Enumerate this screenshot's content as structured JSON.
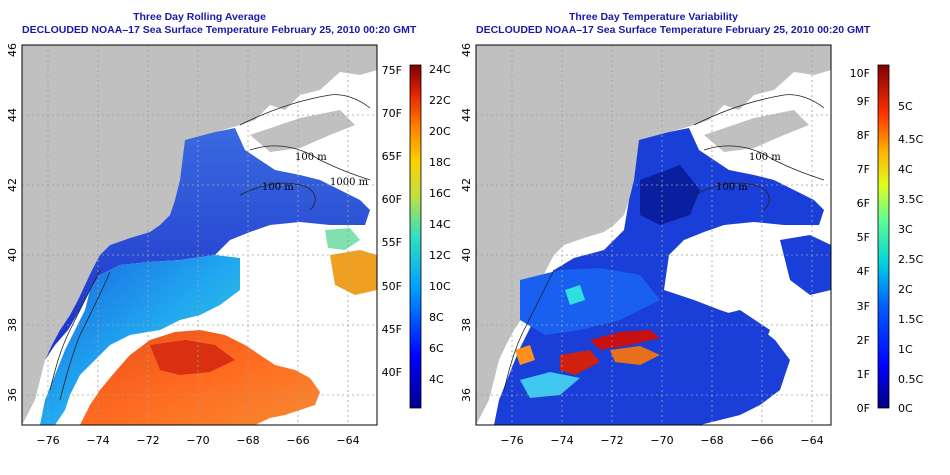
{
  "left_panel": {
    "title": "Three Day Rolling Average",
    "subtitle": "DECLOUDED NOAA–17 Sea Surface Temperature February 25, 2010 00:20 GMT",
    "colorbar_f": [
      "40F",
      "45F",
      "50F",
      "55F",
      "60F",
      "65F",
      "70F",
      "75F"
    ],
    "colorbar_c": [
      "4C",
      "6C",
      "8C",
      "10C",
      "12C",
      "14C",
      "16C",
      "18C",
      "20C",
      "22C",
      "24C"
    ]
  },
  "right_panel": {
    "title": "Three Day Temperature Variability",
    "subtitle": "DECLOUDED NOAA–17 Sea Surface Temperature February 25, 2010 00:20 GMT",
    "colorbar_f": [
      "0F",
      "1F",
      "2F",
      "3F",
      "4F",
      "5F",
      "6F",
      "7F",
      "8F",
      "9F",
      "10F"
    ],
    "colorbar_c": [
      "0C",
      "0.5C",
      "1C",
      "1.5C",
      "2C",
      "2.5C",
      "3C",
      "3.5C",
      "4C",
      "4.5C",
      "5C"
    ]
  },
  "axes": {
    "lon_ticks": [
      "−76",
      "−74",
      "−72",
      "−70",
      "−68",
      "−66",
      "−64"
    ],
    "lat_ticks": [
      "36",
      "38",
      "40",
      "42",
      "44",
      "46"
    ]
  },
  "isobath_labels": [
    "100 m",
    "100 m",
    "1000 m",
    "100 m"
  ],
  "colors": {
    "land": "#c0c0c0",
    "title": "#1a1aa8",
    "cold": "#1a2fc8",
    "warm": "#e0401a"
  }
}
